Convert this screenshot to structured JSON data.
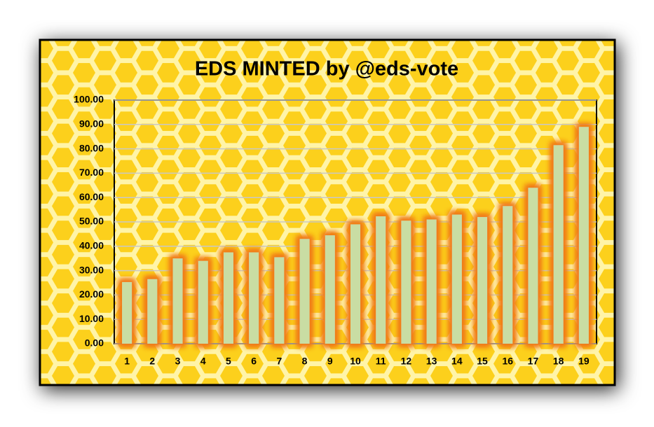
{
  "chart_data": {
    "type": "bar",
    "title": "EDS MINTED by @eds-vote",
    "categories": [
      "1",
      "2",
      "3",
      "4",
      "5",
      "6",
      "7",
      "8",
      "9",
      "10",
      "11",
      "12",
      "13",
      "14",
      "15",
      "16",
      "17",
      "18",
      "19"
    ],
    "values": [
      25.3,
      26.5,
      35,
      34,
      37.5,
      37.5,
      35.5,
      43,
      44.5,
      49,
      52.3,
      50.5,
      51,
      53,
      52,
      56.5,
      64,
      81.5,
      89
    ],
    "color": "#c9dda3",
    "ylim": [
      0,
      100
    ],
    "yticks": [
      {
        "value": 0,
        "label": "0.00"
      },
      {
        "value": 10,
        "label": "10.00"
      },
      {
        "value": 20,
        "label": "20.00"
      },
      {
        "value": 30,
        "label": "30.00"
      },
      {
        "value": 40,
        "label": "40.00"
      },
      {
        "value": 50,
        "label": "50.00"
      },
      {
        "value": 60,
        "label": "60.00"
      },
      {
        "value": 70,
        "label": "70.00"
      },
      {
        "value": 80,
        "label": "80.00"
      },
      {
        "value": 90,
        "label": "90.00"
      },
      {
        "value": 100,
        "label": "100.00"
      }
    ],
    "grid": true
  }
}
